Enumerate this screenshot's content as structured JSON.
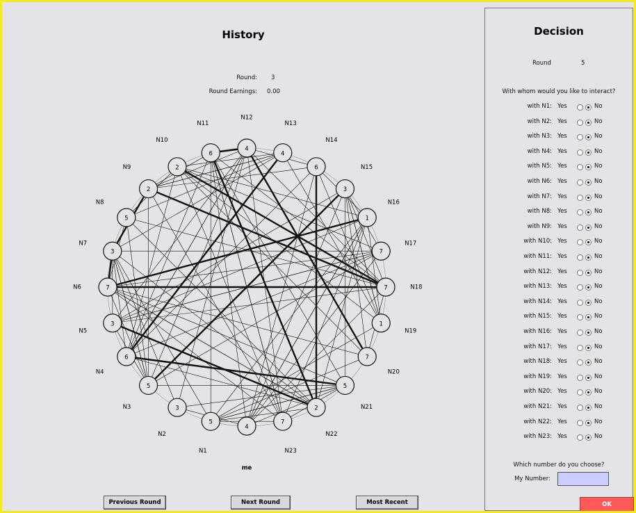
{
  "history": {
    "title": "History",
    "round_label": "Round:",
    "round": "3",
    "earnings_label": "Round Earnings:",
    "earnings": "0.00",
    "nodes": [
      {
        "label": "me",
        "value": "4"
      },
      {
        "label": "N1",
        "value": "5"
      },
      {
        "label": "N2",
        "value": "3"
      },
      {
        "label": "N3",
        "value": "5"
      },
      {
        "label": "N4",
        "value": "6"
      },
      {
        "label": "N5",
        "value": "3"
      },
      {
        "label": "N6",
        "value": "7"
      },
      {
        "label": "N7",
        "value": "3"
      },
      {
        "label": "N8",
        "value": "5"
      },
      {
        "label": "N9",
        "value": "2"
      },
      {
        "label": "N10",
        "value": "2"
      },
      {
        "label": "N11",
        "value": "6"
      },
      {
        "label": "N12",
        "value": "4"
      },
      {
        "label": "N13",
        "value": "4"
      },
      {
        "label": "N14",
        "value": "6"
      },
      {
        "label": "N15",
        "value": "3"
      },
      {
        "label": "N16",
        "value": "1"
      },
      {
        "label": "N17",
        "value": "7"
      },
      {
        "label": "N18",
        "value": "7"
      },
      {
        "label": "N19",
        "value": "1"
      },
      {
        "label": "N20",
        "value": "7"
      },
      {
        "label": "N21",
        "value": "5"
      },
      {
        "label": "N22",
        "value": "2"
      },
      {
        "label": "N23",
        "value": "7"
      }
    ],
    "buttons": [
      "Previous Round",
      "Next Round",
      "Most Recent Round"
    ]
  },
  "decision": {
    "title": "Decision",
    "round_label": "Round",
    "round": "5",
    "question": "With whom would you like to interact?",
    "rows": [
      {
        "label": "with N1:",
        "yes": "Yes",
        "no": "No"
      },
      {
        "label": "with N2:",
        "yes": "Yes",
        "no": "No"
      },
      {
        "label": "with N3:",
        "yes": "Yes",
        "no": "No"
      },
      {
        "label": "with N4:",
        "yes": "Yes",
        "no": "No"
      },
      {
        "label": "with N5:",
        "yes": "Yes",
        "no": "No"
      },
      {
        "label": "with N6:",
        "yes": "Yes",
        "no": "No"
      },
      {
        "label": "with N7:",
        "yes": "Yes",
        "no": "No"
      },
      {
        "label": "with N8:",
        "yes": "Yes",
        "no": "No"
      },
      {
        "label": "with N9:",
        "yes": "Yes",
        "no": "No"
      },
      {
        "label": "with N10:",
        "yes": "Yes",
        "no": "No"
      },
      {
        "label": "with N11:",
        "yes": "Yes",
        "no": "No"
      },
      {
        "label": "with N12:",
        "yes": "Yes",
        "no": "No"
      },
      {
        "label": "with N13:",
        "yes": "Yes",
        "no": "No"
      },
      {
        "label": "with N14:",
        "yes": "Yes",
        "no": "No"
      },
      {
        "label": "with N15:",
        "yes": "Yes",
        "no": "No"
      },
      {
        "label": "with N16:",
        "yes": "Yes",
        "no": "No"
      },
      {
        "label": "with N17:",
        "yes": "Yes",
        "no": "No"
      },
      {
        "label": "with N18:",
        "yes": "Yes",
        "no": "No"
      },
      {
        "label": "with N19:",
        "yes": "Yes",
        "no": "No"
      },
      {
        "label": "with N20:",
        "yes": "Yes",
        "no": "No"
      },
      {
        "label": "with N21:",
        "yes": "Yes",
        "no": "No"
      },
      {
        "label": "with N22:",
        "yes": "Yes",
        "no": "No"
      },
      {
        "label": "with N23:",
        "yes": "Yes",
        "no": "No"
      }
    ],
    "number_question": "Which number do you choose?",
    "number_label": "My Number:",
    "ok": "OK"
  }
}
